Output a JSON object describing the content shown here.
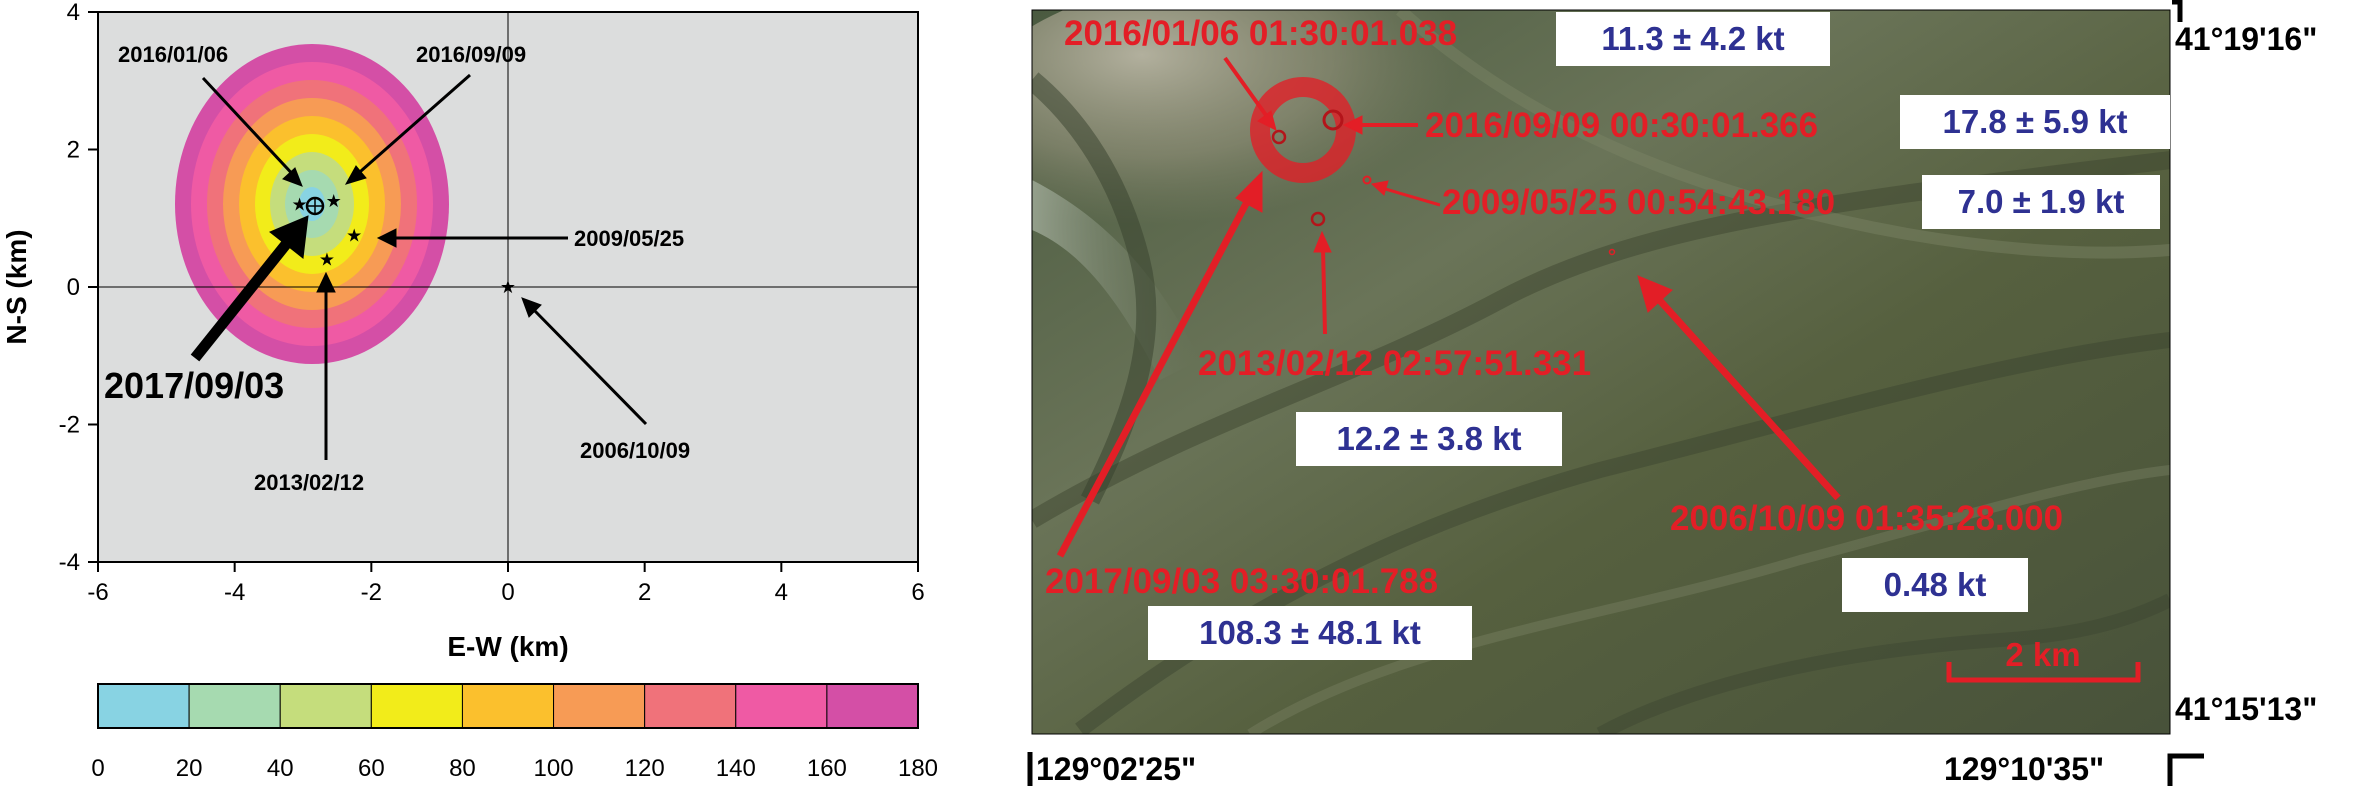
{
  "left_plot": {
    "ylabel": "N-S (km)",
    "xlabel": "E-W (km)",
    "x_range": [
      -6,
      6
    ],
    "y_range": [
      -4,
      4
    ],
    "x_ticks": [
      "-6",
      "-4",
      "-2",
      "0",
      "2",
      "4",
      "6"
    ],
    "y_ticks": [
      "4",
      "2",
      "0",
      "-2",
      "-4"
    ],
    "event_labels": {
      "e2016_01_06": "2016/01/06",
      "e2016_09_09": "2016/09/09",
      "e2009_05_25": "2009/05/25",
      "e2017_09_03": "2017/09/03",
      "e2013_02_12": "2013/02/12",
      "e2006_10_09": "2006/10/09"
    },
    "event_positions_km": {
      "e2016_01_06": [
        -3.05,
        1.2
      ],
      "e2016_09_09": [
        -2.55,
        1.25
      ],
      "e2009_05_25": [
        -2.25,
        0.75
      ],
      "e2017_09_03": [
        -2.8,
        1.2
      ],
      "e2013_02_12": [
        -2.65,
        0.4
      ],
      "e2006_10_09": [
        0,
        0
      ]
    },
    "contour_center_km": [
      -2.8,
      1.15
    ],
    "colorbar": {
      "ticks": [
        "0",
        "20",
        "40",
        "60",
        "80",
        "100",
        "120",
        "140",
        "160",
        "180"
      ],
      "colors": [
        "#88d3e3",
        "#a6dab0",
        "#c5dd7c",
        "#f2ec1a",
        "#fbc02d",
        "#f79b55",
        "#f0727a",
        "#ef5aa4",
        "#d44fa6"
      ]
    }
  },
  "map": {
    "coords": {
      "top_right": "41°19'16\"",
      "bottom_right_lat": "41°15'13\"",
      "bottom_left_lon": "129°02'25\"",
      "bottom_right_lon": "129°10'35\""
    },
    "events": {
      "e2016_01_06": {
        "time": "2016/01/06 01:30:01.038",
        "yield": "11.3 ± 4.2 kt"
      },
      "e2016_09_09": {
        "time": "2016/09/09 00:30:01.366",
        "yield": "17.8 ± 5.9 kt"
      },
      "e2009_05_25": {
        "time": "2009/05/25 00:54:43.180",
        "yield": "7.0 ± 1.9 kt"
      },
      "e2013_02_12": {
        "time": "2013/02/12 02:57:51.331",
        "yield": "12.2 ± 3.8 kt"
      },
      "e2006_10_09": {
        "time": "2006/10/09 01:35:28.000",
        "yield": "0.48 kt"
      },
      "e2017_09_03": {
        "time": "2017/09/03 03:30:01.788",
        "yield": "108.3 ± 48.1 kt"
      }
    },
    "scale_bar": "2 km",
    "colors": {
      "label_red": "#e31e26",
      "yield_blue": "#2e3192"
    }
  }
}
